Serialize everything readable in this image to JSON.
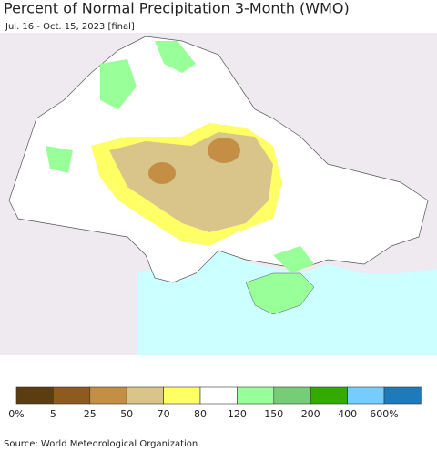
{
  "header": {
    "title": "Percent of Normal Precipitation 3-Month (WMO)",
    "subtitle": "Jul. 16 - Oct. 15, 2023 [final]"
  },
  "legend": {
    "colors": [
      "#5c3d12",
      "#8f5a1e",
      "#c48f45",
      "#d9c48a",
      "#ffff66",
      "#ffffff",
      "#99ff99",
      "#77cc77",
      "#33aa00",
      "#77ccff",
      "#1e7ab8"
    ],
    "labels": [
      "0%",
      "5",
      "25",
      "50",
      "70",
      "80",
      "120",
      "150",
      "200",
      "400",
      "600%"
    ]
  },
  "footer": {
    "source": "Source: World Meteorological Organization"
  }
}
